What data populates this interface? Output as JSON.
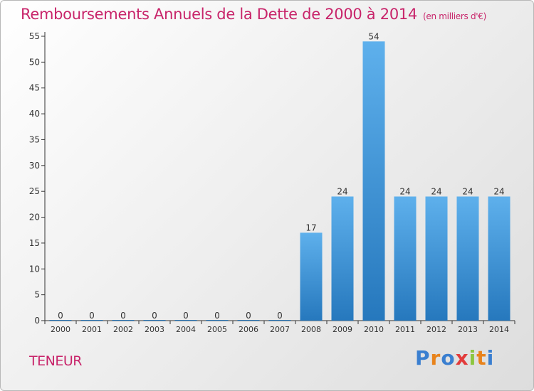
{
  "title": "Remboursements Annuels de la Dette de 2000 à 2014",
  "unit": "(en milliers d'€)",
  "commune": "TENEUR",
  "logo": {
    "letters": [
      "P",
      "r",
      "o",
      "x",
      "i",
      "t",
      "i"
    ],
    "colors": [
      "#3a7fd0",
      "#e8831c",
      "#3a7fd0",
      "#e23b3b",
      "#8cc63f",
      "#e8831c",
      "#3a7fd0"
    ]
  },
  "colors": {
    "title": "#c8246a",
    "bar_top": "#5eb0ec",
    "bar_bottom": "#2678bd",
    "axis": "#333333"
  },
  "chart_data": {
    "type": "bar",
    "categories": [
      "2000",
      "2001",
      "2002",
      "2003",
      "2004",
      "2005",
      "2006",
      "2007",
      "2008",
      "2009",
      "2010",
      "2011",
      "2012",
      "2013",
      "2014"
    ],
    "values": [
      0,
      0,
      0,
      0,
      0,
      0,
      0,
      0,
      17,
      24,
      54,
      24,
      24,
      24,
      24
    ],
    "data_labels": [
      "0",
      "0",
      "0",
      "0",
      "0",
      "0",
      "0",
      "0",
      "17",
      "24",
      "54",
      "24",
      "24",
      "24",
      "24"
    ],
    "yticks": [
      0,
      5,
      10,
      15,
      20,
      25,
      30,
      35,
      40,
      45,
      50,
      55
    ],
    "ylim": [
      0,
      55
    ],
    "grid": false,
    "title": "Remboursements Annuels de la Dette de 2000 à 2014"
  }
}
